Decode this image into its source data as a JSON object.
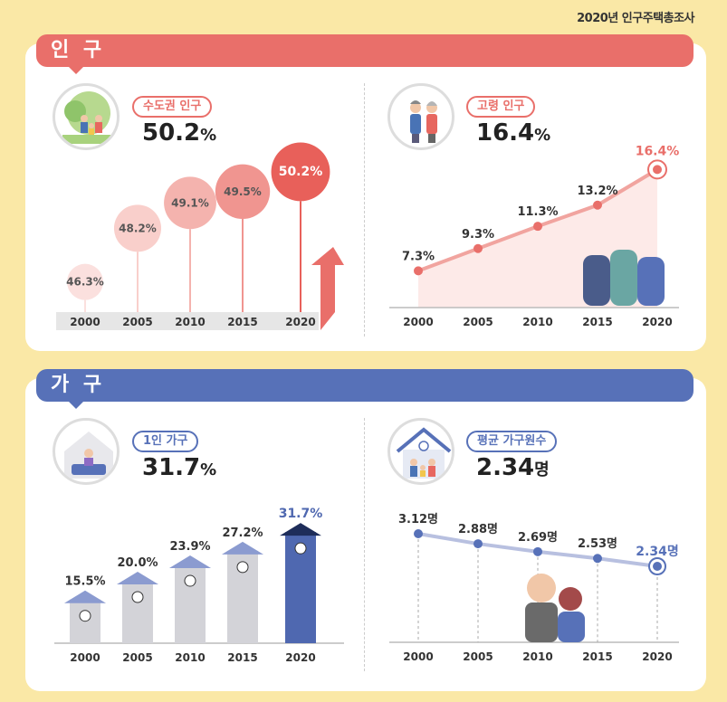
{
  "header": {
    "title": "2020년 인구주택총조사"
  },
  "sections": {
    "population": {
      "title": "인 구",
      "color": "#e96f6a"
    },
    "household": {
      "title": "가 구",
      "color": "#5771b8"
    }
  },
  "metrics": {
    "metro": {
      "label": "수도권 인구",
      "value": "50.2",
      "unit": "%"
    },
    "elderly": {
      "label": "고령 인구",
      "value": "16.4",
      "unit": "%"
    },
    "single": {
      "label": "1인 가구",
      "value": "31.7",
      "unit": "%"
    },
    "avg": {
      "label": "평균 가구원수",
      "value": "2.34",
      "unit": "명"
    }
  },
  "chart_data": [
    {
      "type": "bubble",
      "categories": [
        "2000",
        "2005",
        "2010",
        "2015",
        "2020"
      ],
      "values": [
        46.3,
        48.2,
        49.1,
        49.5,
        50.2
      ],
      "value_labels": [
        "46.3%",
        "48.2%",
        "49.1%",
        "49.5%",
        "50.2%"
      ],
      "colors": [
        "#fbe0de",
        "#f9cfcb",
        "#f4b3ae",
        "#f09590",
        "#e8605a"
      ]
    },
    {
      "type": "line",
      "categories": [
        "2000",
        "2005",
        "2010",
        "2015",
        "2020"
      ],
      "values": [
        7.3,
        9.3,
        11.3,
        13.2,
        16.4
      ],
      "value_labels": [
        "7.3%",
        "9.3%",
        "11.3%",
        "13.2%",
        "16.4%"
      ],
      "color": "#e96f6a"
    },
    {
      "type": "bar",
      "categories": [
        "2000",
        "2005",
        "2010",
        "2015",
        "2020"
      ],
      "values": [
        15.5,
        20.0,
        23.9,
        27.2,
        31.7
      ],
      "value_labels": [
        "15.5%",
        "20.0%",
        "23.9%",
        "27.2%",
        "31.7%"
      ],
      "highlight_color": "#4f68b0"
    },
    {
      "type": "line",
      "categories": [
        "2000",
        "2005",
        "2010",
        "2015",
        "2020"
      ],
      "values": [
        3.12,
        2.88,
        2.69,
        2.53,
        2.34
      ],
      "value_labels": [
        "3.12명",
        "2.88명",
        "2.69명",
        "2.53명",
        "2.34명"
      ],
      "color": "#5771b8"
    }
  ]
}
